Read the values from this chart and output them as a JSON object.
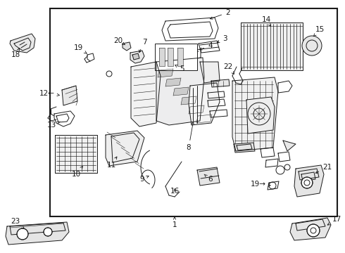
{
  "bg_color": "#ffffff",
  "border_color": "#1a1a1a",
  "line_color": "#1a1a1a",
  "border_lw": 1.5,
  "border": [
    0.145,
    0.075,
    0.975,
    0.955
  ],
  "label_fontsize": 7.5,
  "arrow_lw": 0.6,
  "parts_lw": 0.7
}
